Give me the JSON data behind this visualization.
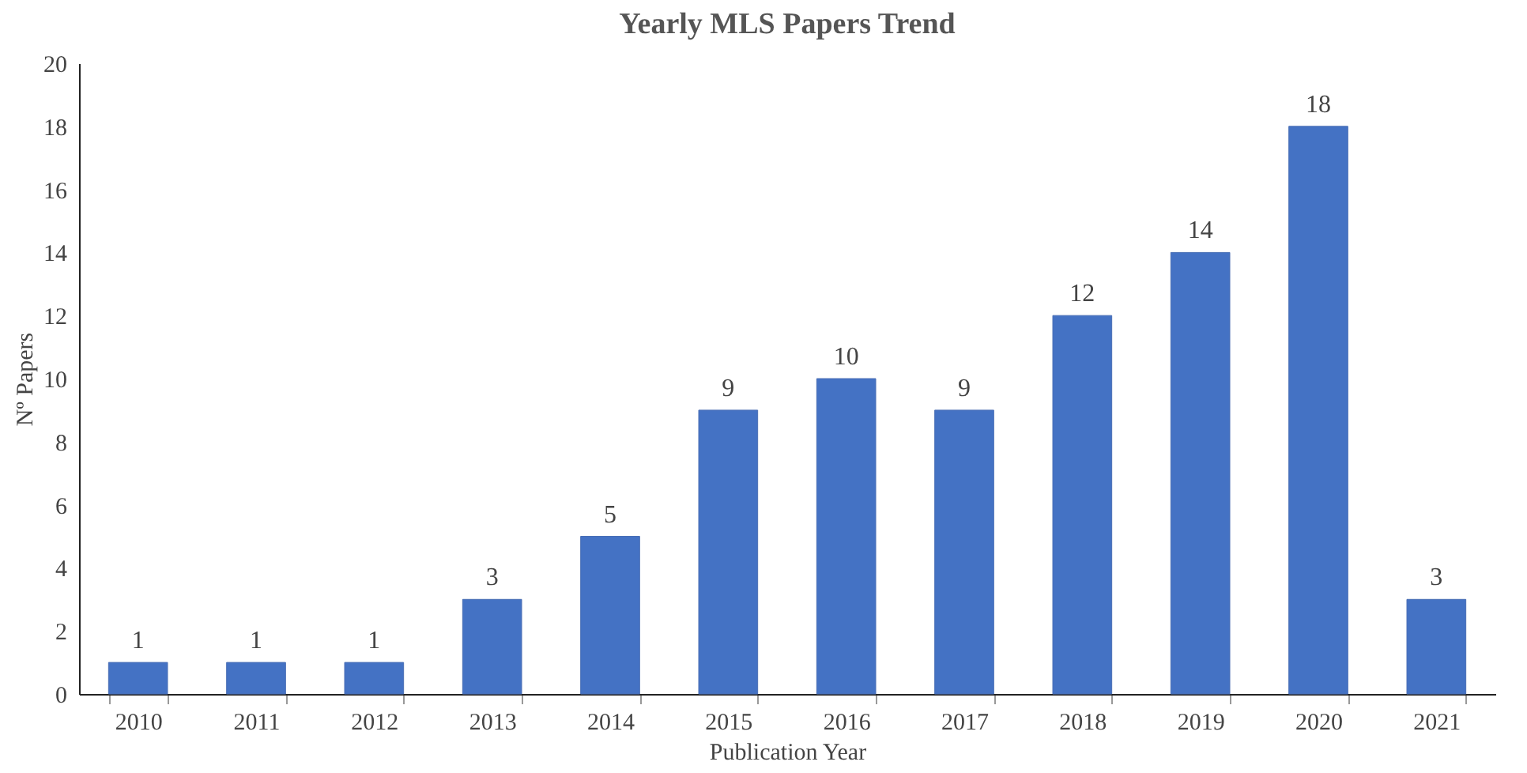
{
  "chart_data": {
    "type": "bar",
    "title": "Yearly MLS Papers Trend",
    "xlabel": "Publication Year",
    "ylabel": "Nº Papers",
    "categories": [
      "2010",
      "2011",
      "2012",
      "2013",
      "2014",
      "2015",
      "2016",
      "2017",
      "2018",
      "2019",
      "2020",
      "2021"
    ],
    "values": [
      1,
      1,
      1,
      3,
      5,
      9,
      10,
      9,
      12,
      14,
      18,
      3
    ],
    "color": "#4472c4",
    "ylim": [
      0,
      20
    ],
    "yticks": [
      0,
      2,
      4,
      6,
      8,
      10,
      12,
      14,
      16,
      18,
      20
    ],
    "grid": false,
    "data_labels": true
  }
}
